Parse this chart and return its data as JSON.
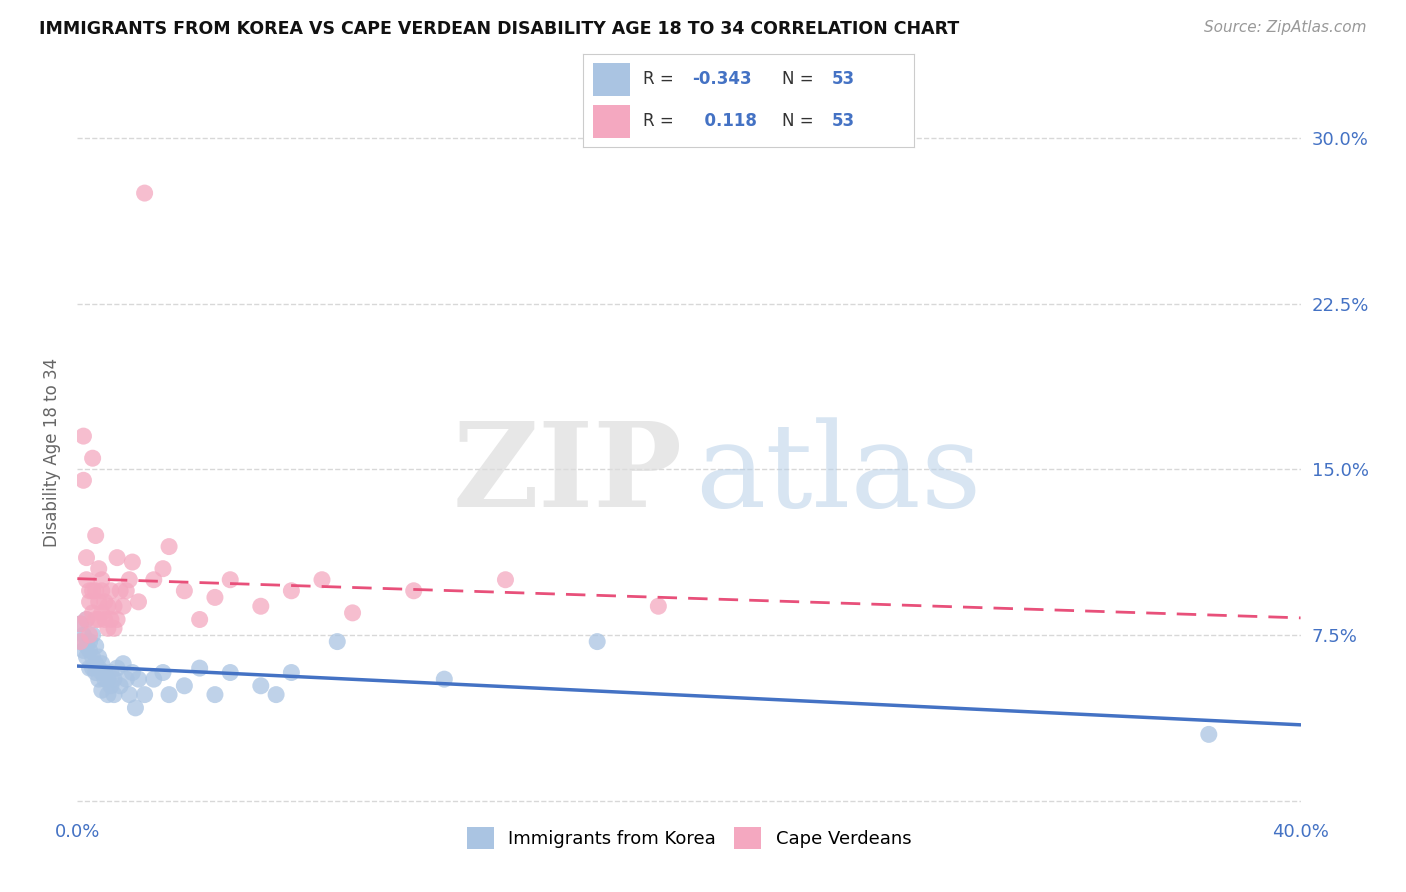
{
  "title": "IMMIGRANTS FROM KOREA VS CAPE VERDEAN DISABILITY AGE 18 TO 34 CORRELATION CHART",
  "source": "Source: ZipAtlas.com",
  "ylabel": "Disability Age 18 to 34",
  "legend_label1": "Immigrants from Korea",
  "legend_label2": "Cape Verdeans",
  "R_korea": -0.343,
  "N_korea": 53,
  "R_cape": 0.118,
  "N_cape": 53,
  "color_korea": "#aac4e2",
  "color_cape": "#f4a8c0",
  "line_color_korea": "#4472c4",
  "line_color_cape": "#e8507a",
  "background_color": "#ffffff",
  "grid_color": "#d8d8d8",
  "title_color": "#111111",
  "axis_color": "#4472c4",
  "xlim": [
    0.0,
    0.4
  ],
  "ylim": [
    -0.005,
    0.32
  ],
  "yticks": [
    0.0,
    0.075,
    0.15,
    0.225,
    0.3
  ],
  "ytick_labels": [
    "",
    "7.5%",
    "15.0%",
    "22.5%",
    "30.0%"
  ],
  "xtick_labels": [
    "0.0%",
    "40.0%"
  ],
  "xtick_positions": [
    0.0,
    0.4
  ],
  "korea_x": [
    0.001,
    0.001,
    0.002,
    0.002,
    0.003,
    0.003,
    0.003,
    0.004,
    0.004,
    0.004,
    0.005,
    0.005,
    0.005,
    0.006,
    0.006,
    0.006,
    0.007,
    0.007,
    0.007,
    0.008,
    0.008,
    0.008,
    0.009,
    0.009,
    0.01,
    0.01,
    0.011,
    0.011,
    0.012,
    0.012,
    0.013,
    0.014,
    0.015,
    0.016,
    0.017,
    0.018,
    0.019,
    0.02,
    0.022,
    0.025,
    0.028,
    0.03,
    0.035,
    0.04,
    0.045,
    0.05,
    0.06,
    0.065,
    0.07,
    0.085,
    0.12,
    0.17,
    0.37
  ],
  "korea_y": [
    0.08,
    0.072,
    0.075,
    0.068,
    0.082,
    0.07,
    0.065,
    0.072,
    0.06,
    0.068,
    0.075,
    0.065,
    0.06,
    0.07,
    0.058,
    0.062,
    0.065,
    0.055,
    0.06,
    0.058,
    0.062,
    0.05,
    0.055,
    0.058,
    0.048,
    0.055,
    0.052,
    0.058,
    0.048,
    0.055,
    0.06,
    0.052,
    0.062,
    0.055,
    0.048,
    0.058,
    0.042,
    0.055,
    0.048,
    0.055,
    0.058,
    0.048,
    0.052,
    0.06,
    0.048,
    0.058,
    0.052,
    0.048,
    0.058,
    0.072,
    0.055,
    0.072,
    0.03
  ],
  "cape_x": [
    0.001,
    0.001,
    0.002,
    0.002,
    0.003,
    0.003,
    0.003,
    0.004,
    0.004,
    0.004,
    0.005,
    0.005,
    0.005,
    0.006,
    0.006,
    0.006,
    0.007,
    0.007,
    0.007,
    0.008,
    0.008,
    0.008,
    0.009,
    0.009,
    0.01,
    0.01,
    0.011,
    0.011,
    0.012,
    0.012,
    0.013,
    0.013,
    0.014,
    0.015,
    0.016,
    0.017,
    0.018,
    0.02,
    0.022,
    0.025,
    0.028,
    0.03,
    0.035,
    0.04,
    0.045,
    0.05,
    0.06,
    0.07,
    0.08,
    0.09,
    0.11,
    0.14,
    0.19
  ],
  "cape_y": [
    0.08,
    0.072,
    0.165,
    0.145,
    0.1,
    0.082,
    0.11,
    0.09,
    0.075,
    0.095,
    0.155,
    0.095,
    0.085,
    0.12,
    0.095,
    0.082,
    0.105,
    0.09,
    0.082,
    0.095,
    0.085,
    0.1,
    0.09,
    0.082,
    0.088,
    0.078,
    0.095,
    0.082,
    0.088,
    0.078,
    0.11,
    0.082,
    0.095,
    0.088,
    0.095,
    0.1,
    0.108,
    0.09,
    0.275,
    0.1,
    0.105,
    0.115,
    0.095,
    0.082,
    0.092,
    0.1,
    0.088,
    0.095,
    0.1,
    0.085,
    0.095,
    0.1,
    0.088
  ]
}
